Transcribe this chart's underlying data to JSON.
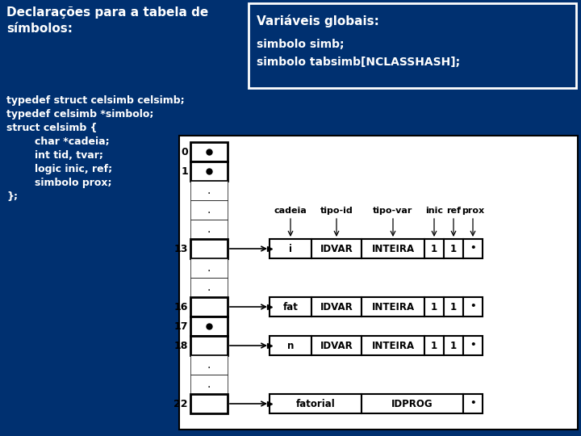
{
  "bg_dark": "#003070",
  "bg_diagram": "#ffffff",
  "text_white": "#ffffff",
  "text_black": "#000000",
  "figsize": [
    7.2,
    5.4
  ],
  "dpi": 100,
  "left_title": "Declarações para a tabela de\nsímbolos:",
  "right_title": "Variáveis globais:",
  "right_vars": "simbolo simb;\nsimbolo tabsimb[NCLASSHASH];",
  "code_lines": [
    "typedef struct celsimb celsimb;",
    "typedef celsimb *simbolo;",
    "struct celsimb {",
    "        char *cadeia;",
    "        int tid, tvar;",
    "        logic inic, ref;",
    "        simbolo prox;",
    "};"
  ],
  "hash_rows": [
    "0",
    "1",
    ".",
    ".",
    ".",
    "13",
    ".",
    ".",
    "16",
    "17",
    "18",
    ".",
    ".",
    "22"
  ],
  "hash_dot_indices": [
    0,
    1,
    9
  ],
  "hash_arrow_indices": [
    5,
    8,
    10,
    13
  ],
  "col_labels": [
    "cadeia",
    "tipo-id",
    "tipo-var",
    "inic",
    "ref",
    "prox"
  ],
  "records": [
    {
      "fields": [
        "i",
        "IDVAR",
        "INTEIRA",
        "1",
        "1",
        "•"
      ],
      "hash_idx": 5,
      "merged": false
    },
    {
      "fields": [
        "fat",
        "IDVAR",
        "INTEIRA",
        "1",
        "1",
        "•"
      ],
      "hash_idx": 8,
      "merged": false
    },
    {
      "fields": [
        "n",
        "IDVAR",
        "INTEIRA",
        "1",
        "1",
        "•"
      ],
      "hash_idx": 10,
      "merged": false
    },
    {
      "fields": [
        "fatorial",
        "IDPROG",
        "•"
      ],
      "hash_idx": 13,
      "merged": true
    }
  ]
}
